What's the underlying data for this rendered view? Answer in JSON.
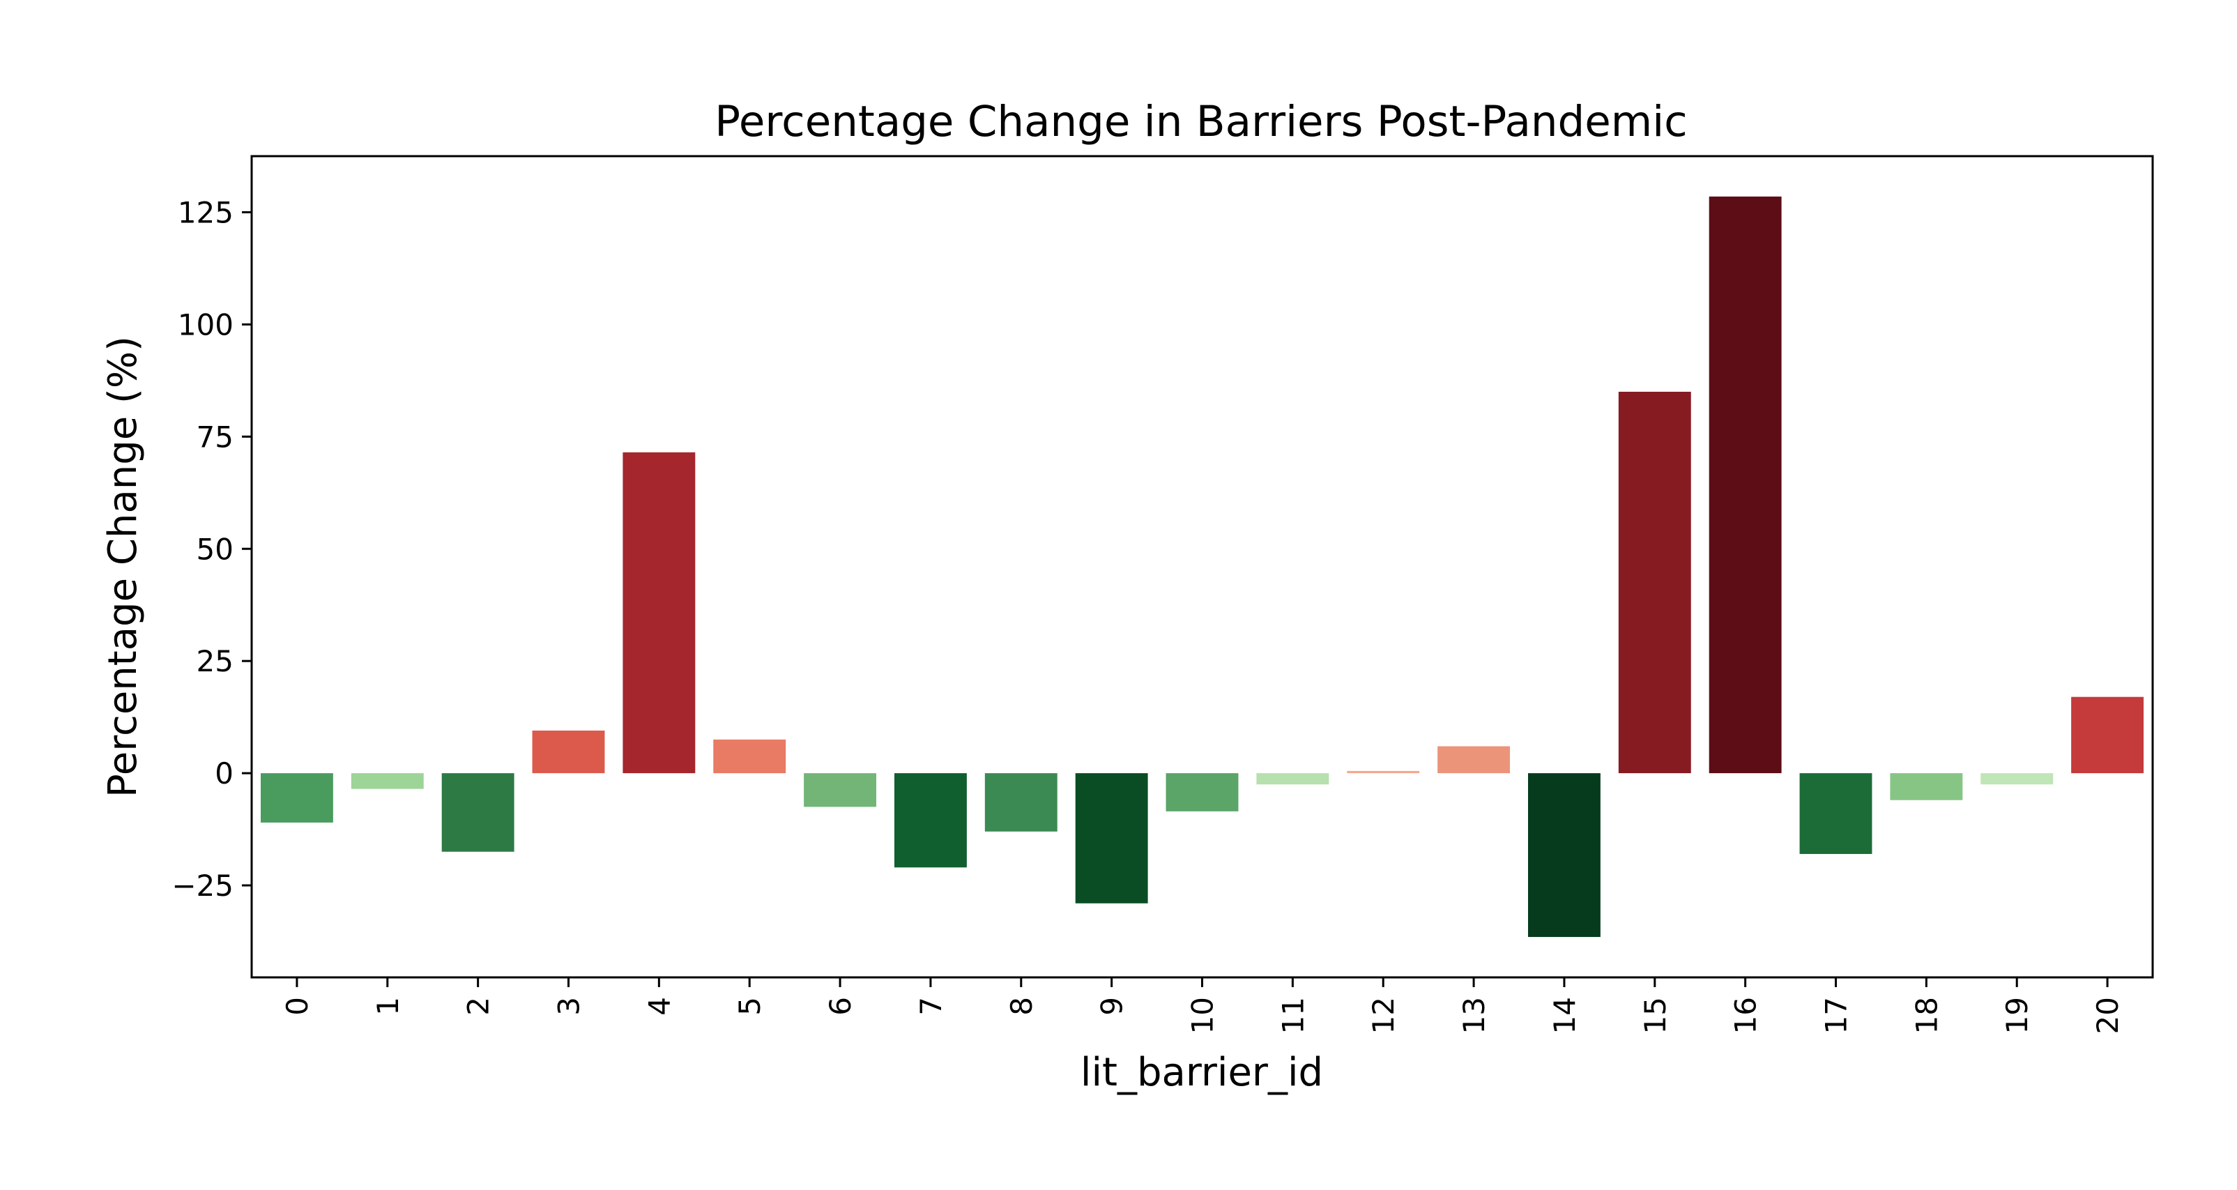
{
  "chart_data": {
    "type": "bar",
    "title": "Percentage Change in Barriers Post-Pandemic",
    "xlabel": "lit_barrier_id",
    "ylabel": "Percentage Change (%)",
    "categories": [
      "0",
      "1",
      "2",
      "3",
      "4",
      "5",
      "6",
      "7",
      "8",
      "9",
      "10",
      "11",
      "12",
      "13",
      "14",
      "15",
      "16",
      "17",
      "18",
      "19",
      "20"
    ],
    "values": [
      -11,
      -3.5,
      -17.5,
      9.5,
      71.5,
      7.5,
      -7.5,
      -21,
      -13,
      -29,
      -8.5,
      -2.5,
      0.5,
      6,
      -36.5,
      85,
      128.5,
      -18,
      -6,
      -2.5,
      17
    ],
    "colors": [
      "#4a9c5e",
      "#9dd497",
      "#2d7a45",
      "#dc5a4b",
      "#a5262c",
      "#e97a63",
      "#72b577",
      "#0f5f2f",
      "#3c8a53",
      "#0a4d24",
      "#5aa567",
      "#b6e0ad",
      "#f4a88f",
      "#eb9479",
      "#073b1d",
      "#861b22",
      "#5c0d16",
      "#1c6c38",
      "#87c584",
      "#c0e5b6",
      "#c53a3b"
    ],
    "yticks": [
      -25,
      0,
      25,
      50,
      75,
      100,
      125
    ],
    "ytick_labels": [
      "−25",
      "0",
      "25",
      "50",
      "75",
      "100",
      "125"
    ],
    "ylim": [
      -45.5,
      137.5
    ],
    "grid": false,
    "legend": "none"
  }
}
